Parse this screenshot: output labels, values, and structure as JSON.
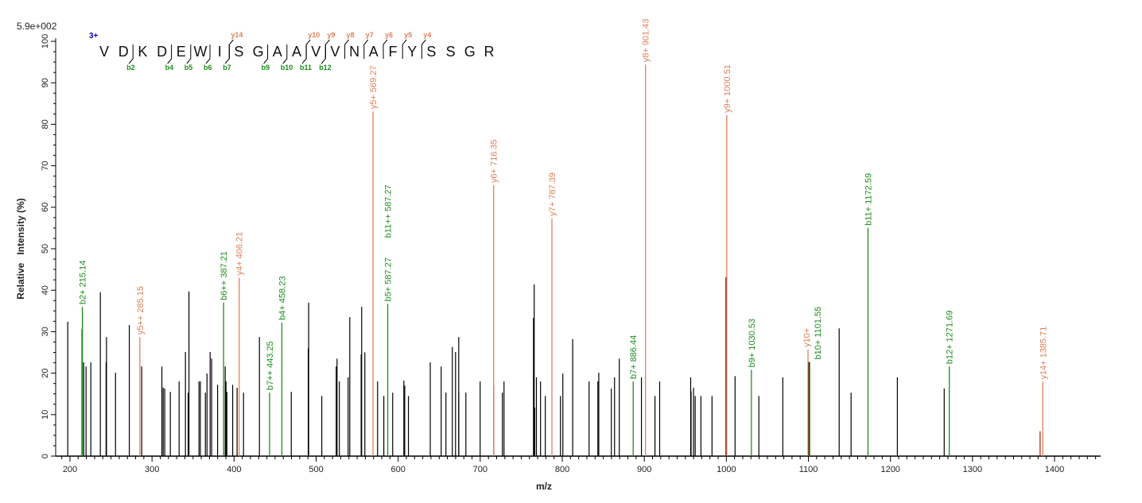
{
  "chart_data": {
    "type": "bar",
    "subtype": "mass-spectrum",
    "scale_label": "5.9e+002",
    "xlabel": "m/z",
    "ylabel": "Relative   Intensity (%)",
    "xlim": [
      182,
      1455
    ],
    "ylim": [
      0,
      100
    ],
    "xticks": [
      200,
      300,
      400,
      500,
      600,
      700,
      800,
      900,
      1000,
      1100,
      1200,
      1300,
      1400
    ],
    "yticks": [
      0,
      10,
      20,
      30,
      40,
      50,
      60,
      70,
      80,
      90,
      100
    ],
    "grid": false,
    "colors": {
      "unassigned": "#000000",
      "b_ion": "#1e8c1e",
      "y_ion": "#e0805a",
      "charge": "#0000cc",
      "overlap": "#a02010"
    },
    "peptide": {
      "charge": "3+",
      "sequence": [
        "V",
        "D",
        "K",
        "D",
        "E",
        "W",
        "I",
        "S",
        "G",
        "A",
        "A",
        "V",
        "V",
        "N",
        "A",
        "F",
        "Y",
        "S",
        "S",
        "G",
        "R"
      ],
      "b_marks": [
        {
          "after": 2,
          "label": "b2"
        },
        {
          "after": 4,
          "label": "b4"
        },
        {
          "after": 5,
          "label": "b5"
        },
        {
          "after": 6,
          "label": "b6"
        },
        {
          "after": 7,
          "label": "b7"
        },
        {
          "after": 9,
          "label": "b9"
        },
        {
          "after": 10,
          "label": "b10"
        },
        {
          "after": 11,
          "label": "b11"
        },
        {
          "after": 12,
          "label": "b12"
        }
      ],
      "y_marks": [
        {
          "before": 8,
          "label": "y14"
        },
        {
          "before": 12,
          "label": "y10"
        },
        {
          "before": 13,
          "label": "y9"
        },
        {
          "before": 14,
          "label": "y8"
        },
        {
          "before": 15,
          "label": "y7"
        },
        {
          "before": 16,
          "label": "y6"
        },
        {
          "before": 17,
          "label": "y5"
        },
        {
          "before": 18,
          "label": "y4"
        }
      ]
    },
    "ions": [
      {
        "label": "b2+ 215.14",
        "mz": 215.14,
        "intensity": 36,
        "type": "b"
      },
      {
        "label": "y5++ 285.15",
        "mz": 285.15,
        "intensity": 28.7,
        "type": "y"
      },
      {
        "label": "b6++ 387.21",
        "mz": 387.21,
        "intensity": 37,
        "type": "b"
      },
      {
        "label": "y4+ 406.21",
        "mz": 406.21,
        "intensity": 43,
        "type": "y"
      },
      {
        "label": "b7++ 443.25",
        "mz": 443.25,
        "intensity": 15.3,
        "type": "b"
      },
      {
        "label": "b4+ 458.23",
        "mz": 458.23,
        "intensity": 32.2,
        "type": "b"
      },
      {
        "label": "y5+ 569.27",
        "mz": 569.27,
        "intensity": 83.1,
        "type": "y"
      },
      {
        "label": "b5+ 587.27",
        "mz": 587.27,
        "intensity": 36.7,
        "type": "b"
      },
      {
        "label": "b11++ 587.27",
        "mz": 587.27,
        "intensity": 36.7,
        "type": "b",
        "stacked": true
      },
      {
        "label": "y6+ 716.35",
        "mz": 716.35,
        "intensity": 65.3,
        "type": "y"
      },
      {
        "label": "y7+ 787.39",
        "mz": 787.39,
        "intensity": 57.3,
        "type": "y"
      },
      {
        "label": "b7+ 886.44",
        "mz": 886.44,
        "intensity": 18,
        "type": "b"
      },
      {
        "label": "y8+ 901.43",
        "mz": 901.43,
        "intensity": 94.4,
        "type": "y"
      },
      {
        "label": "y9+ 1000.51",
        "mz": 1000.51,
        "intensity": 82.2,
        "type": "y"
      },
      {
        "label": "b9+ 1030.53",
        "mz": 1030.53,
        "intensity": 20.8,
        "type": "b"
      },
      {
        "label": "y10+",
        "mz": 1099.5,
        "intensity": 25.7,
        "type": "y"
      },
      {
        "label": "b10+ 1101.55",
        "mz": 1101.55,
        "intensity": 22.7,
        "type": "b",
        "label_offset": true
      },
      {
        "label": "b11+ 1172.59",
        "mz": 1172.59,
        "intensity": 55,
        "type": "b"
      },
      {
        "label": "b12+ 1271.69",
        "mz": 1271.69,
        "intensity": 21.6,
        "type": "b"
      },
      {
        "label": "y14+ 1385.71",
        "mz": 1385.71,
        "intensity": 17.9,
        "type": "y"
      }
    ],
    "peaks": [
      [
        197.3,
        32.4
      ],
      [
        214.7,
        30.6
      ],
      [
        216.7,
        22.6
      ],
      [
        219.6,
        21.6
      ],
      [
        225.4,
        22.6
      ],
      [
        237,
        39.5
      ],
      [
        244,
        22.6
      ],
      [
        244.5,
        28.7
      ],
      [
        255.5,
        20.1
      ],
      [
        272.3,
        31.6
      ],
      [
        287.4,
        21.6
      ],
      [
        312,
        21.6
      ],
      [
        313.6,
        16.5
      ],
      [
        315.5,
        16.3
      ],
      [
        322.3,
        15.5
      ],
      [
        333,
        18
      ],
      [
        340.7,
        25.1
      ],
      [
        344,
        15.3
      ],
      [
        345,
        39.7
      ],
      [
        357.2,
        18
      ],
      [
        358.9,
        18
      ],
      [
        365,
        15.3
      ],
      [
        367,
        19.9
      ],
      [
        370.8,
        25.1
      ],
      [
        372.7,
        23.5
      ],
      [
        379.9,
        17.2
      ],
      [
        389.2,
        21.6
      ],
      [
        390.2,
        18
      ],
      [
        391.2,
        15.5
      ],
      [
        398.3,
        17.2
      ],
      [
        403.7,
        16.5
      ],
      [
        411.5,
        15.3
      ],
      [
        430.9,
        28.7
      ],
      [
        469.7,
        15.5
      ],
      [
        490.4,
        26
      ],
      [
        490.9,
        37
      ],
      [
        506.9,
        14.5
      ],
      [
        524.5,
        21.6
      ],
      [
        525.5,
        23.5
      ],
      [
        528.3,
        18
      ],
      [
        539,
        19
      ],
      [
        541,
        33.5
      ],
      [
        554.9,
        24.5
      ],
      [
        555.5,
        36
      ],
      [
        559.4,
        25
      ],
      [
        574.9,
        18
      ],
      [
        582.5,
        14.5
      ],
      [
        593.3,
        15.3
      ],
      [
        606.9,
        18.2
      ],
      [
        608,
        17
      ],
      [
        612.5,
        14.5
      ],
      [
        639.1,
        22.6
      ],
      [
        652.4,
        21.6
      ],
      [
        658.2,
        15.3
      ],
      [
        666,
        26.3
      ],
      [
        669.9,
        25.1
      ],
      [
        673.8,
        28.7
      ],
      [
        673.9,
        15.3
      ],
      [
        682.5,
        15.3
      ],
      [
        699.9,
        18
      ],
      [
        716.5,
        17
      ],
      [
        727,
        15.3
      ],
      [
        729,
        18
      ],
      [
        764.9,
        33.3
      ],
      [
        765.8,
        41.4
      ],
      [
        766.5,
        11.7
      ],
      [
        768.5,
        19
      ],
      [
        773.5,
        18
      ],
      [
        779.3,
        14.5
      ],
      [
        797.8,
        14.5
      ],
      [
        800.7,
        19.9
      ],
      [
        812.7,
        28.2
      ],
      [
        832.7,
        18
      ],
      [
        843.4,
        18
      ],
      [
        844.5,
        20.1
      ],
      [
        859.8,
        16.3
      ],
      [
        863.7,
        19
      ],
      [
        869.5,
        23.5
      ],
      [
        896.5,
        19
      ],
      [
        913,
        14.5
      ],
      [
        918.7,
        18
      ],
      [
        956.5,
        19
      ],
      [
        957,
        15.6
      ],
      [
        960,
        16.5
      ],
      [
        962,
        14.5
      ],
      [
        969,
        14.5
      ],
      [
        982.5,
        14.5
      ],
      [
        999.6,
        43.1
      ],
      [
        1010.6,
        19.3
      ],
      [
        1039.6,
        14.5
      ],
      [
        1068.8,
        19
      ],
      [
        1100.5,
        22.7
      ],
      [
        1137.5,
        30.8
      ],
      [
        1152,
        15.3
      ],
      [
        1208.4,
        19
      ],
      [
        1265.5,
        16.3
      ],
      [
        1382.4,
        6
      ]
    ]
  }
}
